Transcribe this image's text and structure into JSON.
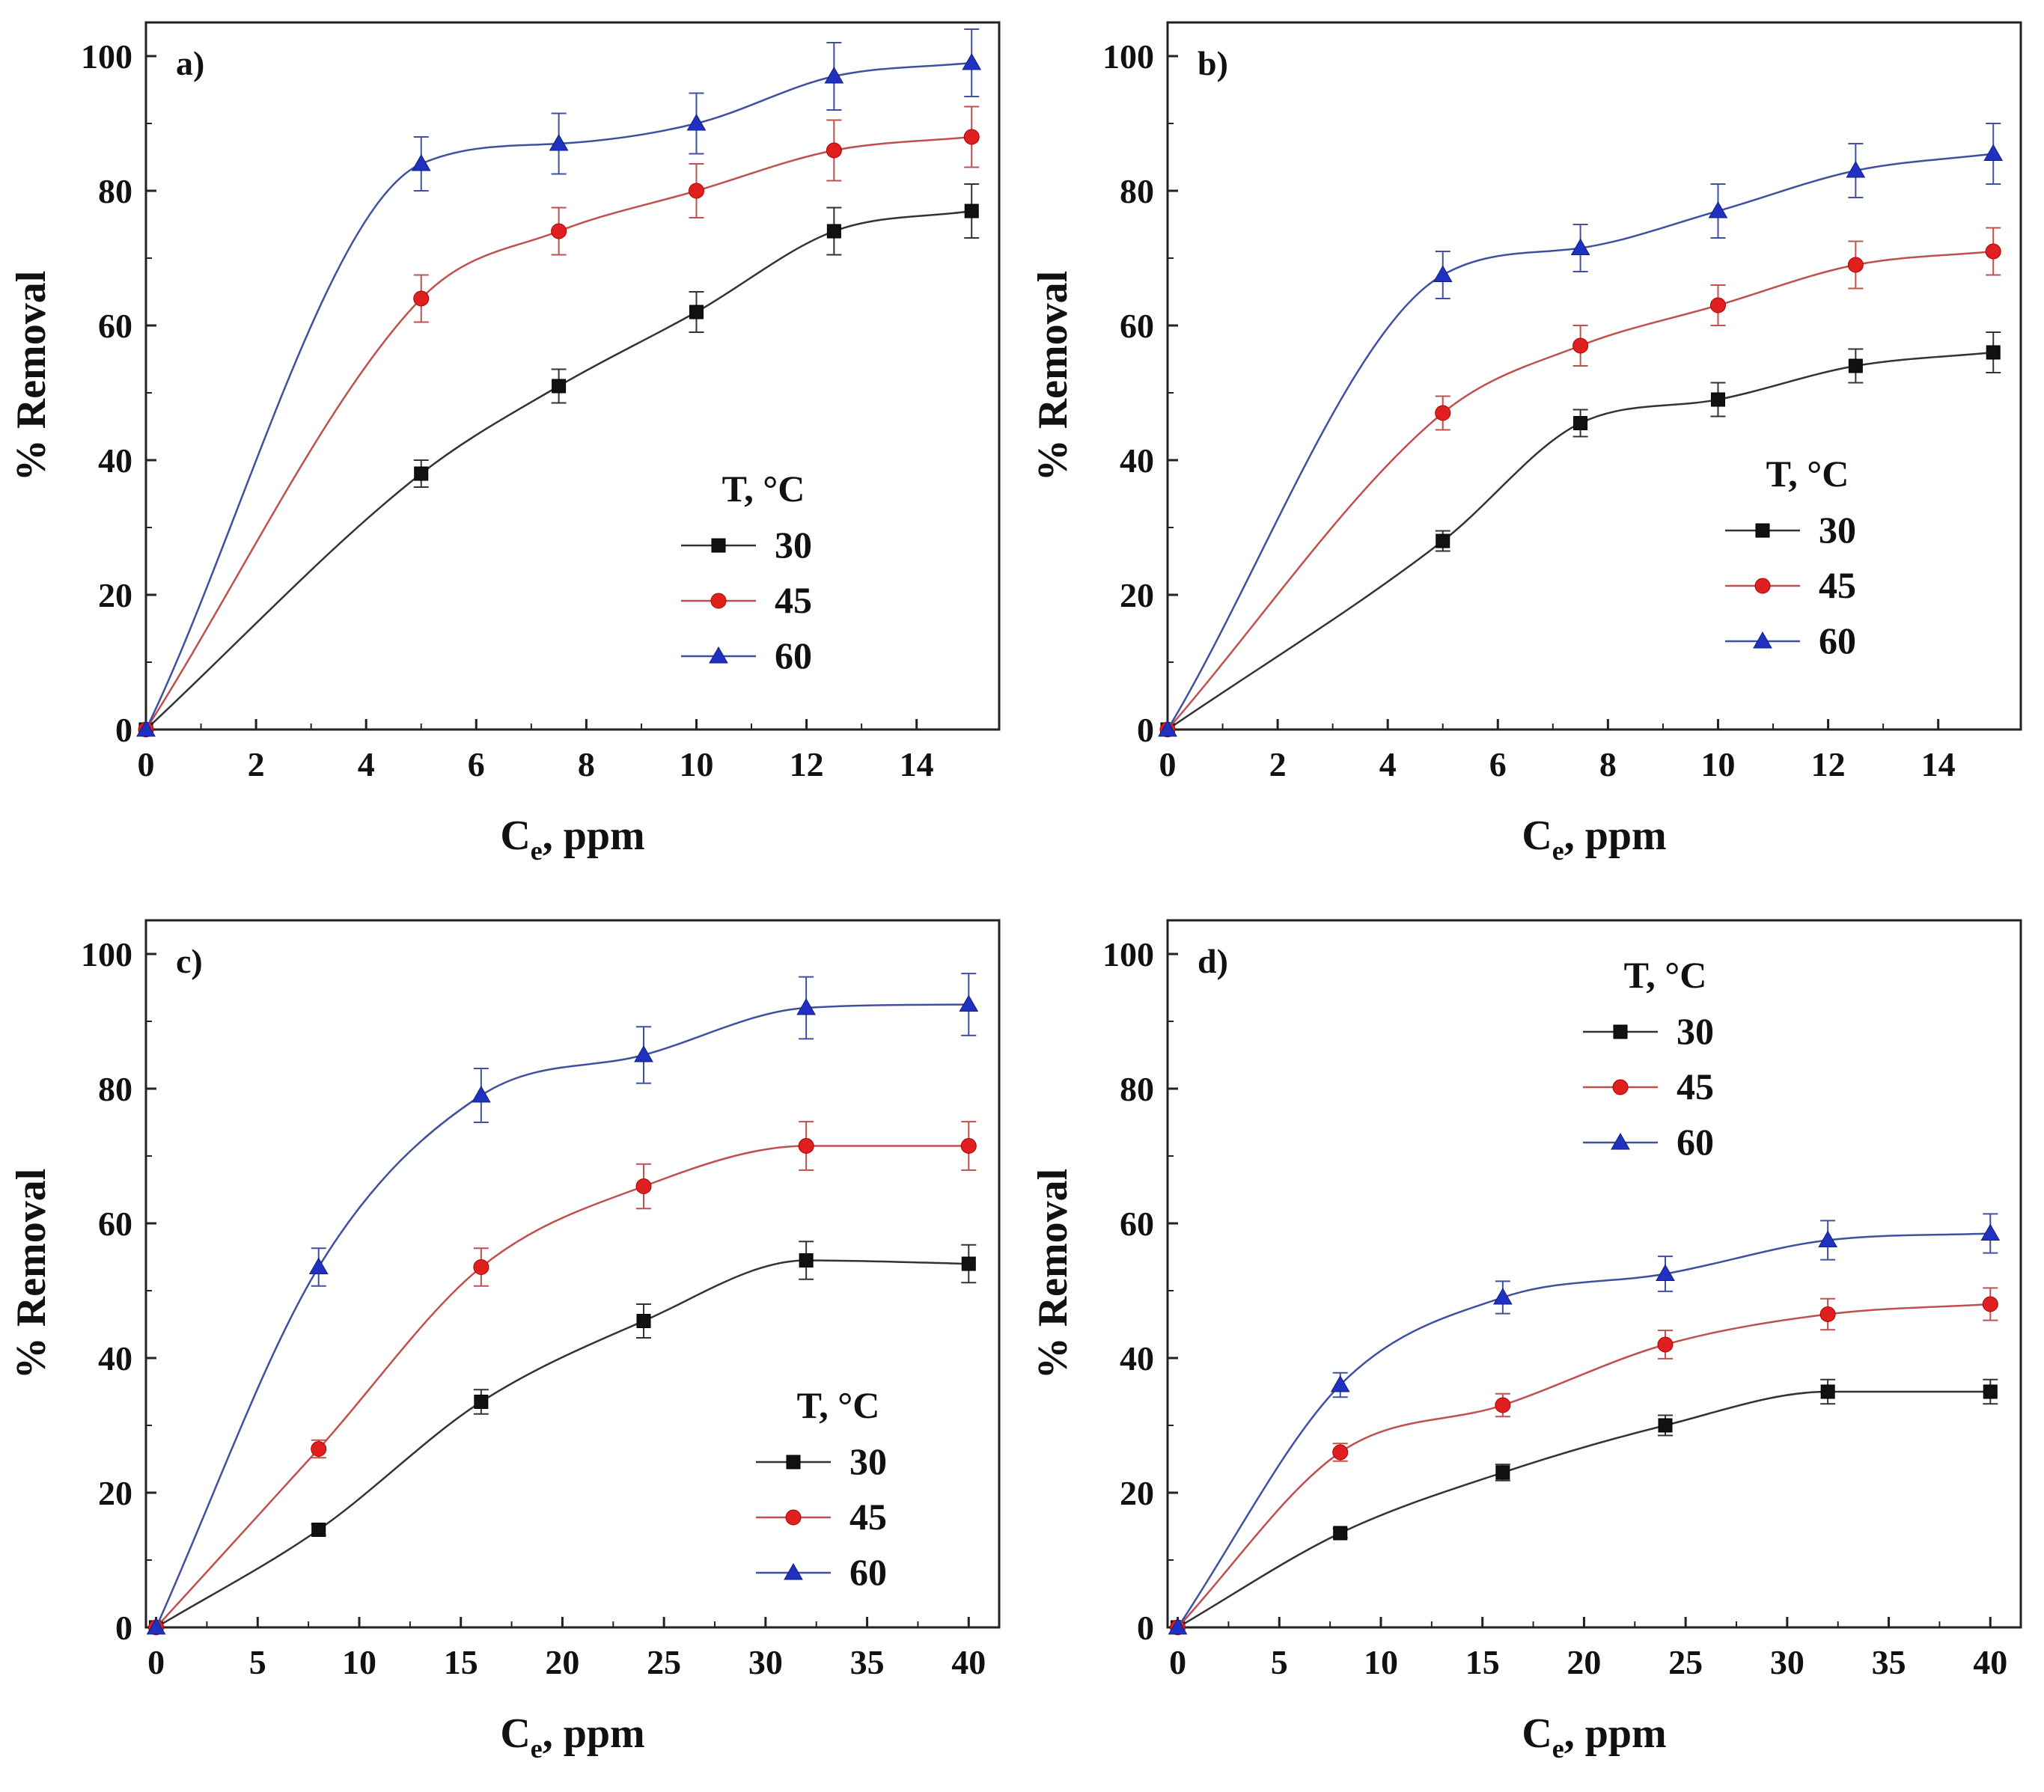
{
  "chart_data": [
    {
      "type": "line",
      "panel_label": "a)",
      "xlabel": "C",
      "xlabel_sub": "e",
      "xlabel_suffix": ", ppm",
      "ylabel": "% Removal",
      "xlim": [
        0,
        15.5
      ],
      "ylim": [
        0,
        105
      ],
      "xticks": [
        0,
        2,
        4,
        6,
        8,
        10,
        12,
        14
      ],
      "yticks": [
        0,
        20,
        40,
        60,
        80,
        100
      ],
      "legend_title": "T, °C",
      "legend_position": "center-right",
      "series": [
        {
          "name": "30",
          "marker": "square",
          "color": "#111111",
          "line_color": "#333333",
          "x": [
            0,
            5,
            7.5,
            10,
            12.5,
            15
          ],
          "y": [
            0,
            38,
            51,
            62,
            74,
            77
          ],
          "err": [
            0,
            2,
            2.5,
            3,
            3.5,
            4
          ]
        },
        {
          "name": "45",
          "marker": "circle",
          "color": "#e02020",
          "line_color": "#c0504d",
          "x": [
            0,
            5,
            7.5,
            10,
            12.5,
            15
          ],
          "y": [
            0,
            64,
            74,
            80,
            86,
            88
          ],
          "err": [
            0,
            3.5,
            3.5,
            4,
            4.5,
            4.5
          ]
        },
        {
          "name": "60",
          "marker": "triangle",
          "color": "#2030c0",
          "line_color": "#4050a0",
          "x": [
            0,
            5,
            7.5,
            10,
            12.5,
            15
          ],
          "y": [
            0,
            84,
            87,
            90,
            97,
            99
          ],
          "err": [
            0,
            4,
            4.5,
            4.5,
            5,
            5
          ]
        }
      ]
    },
    {
      "type": "line",
      "panel_label": "b)",
      "xlabel": "C",
      "xlabel_sub": "e",
      "xlabel_suffix": ", ppm",
      "ylabel": "% Removal",
      "xlim": [
        0,
        15.5
      ],
      "ylim": [
        0,
        105
      ],
      "xticks": [
        0,
        2,
        4,
        6,
        8,
        10,
        12,
        14
      ],
      "yticks": [
        0,
        20,
        40,
        60,
        80,
        100
      ],
      "legend_title": "T, °C",
      "legend_position": "center-right",
      "series": [
        {
          "name": "30",
          "marker": "square",
          "color": "#111111",
          "line_color": "#333333",
          "x": [
            0,
            5,
            7.5,
            10,
            12.5,
            15
          ],
          "y": [
            0,
            28,
            45.5,
            49,
            54,
            56
          ],
          "err": [
            0,
            1.5,
            2,
            2.5,
            2.5,
            3
          ]
        },
        {
          "name": "45",
          "marker": "circle",
          "color": "#e02020",
          "line_color": "#c0504d",
          "x": [
            0,
            5,
            7.5,
            10,
            12.5,
            15
          ],
          "y": [
            0,
            47,
            57,
            63,
            69,
            71
          ],
          "err": [
            0,
            2.5,
            3,
            3,
            3.5,
            3.5
          ]
        },
        {
          "name": "60",
          "marker": "triangle",
          "color": "#2030c0",
          "line_color": "#4050a0",
          "x": [
            0,
            5,
            7.5,
            10,
            12.5,
            15
          ],
          "y": [
            0,
            67.5,
            71.5,
            77,
            83,
            85.5
          ],
          "err": [
            0,
            3.5,
            3.5,
            4,
            4,
            4.5
          ]
        }
      ]
    },
    {
      "type": "line",
      "panel_label": "c)",
      "xlabel": "C",
      "xlabel_sub": "e",
      "xlabel_suffix": ", ppm",
      "ylabel": "% Removal",
      "xlim": [
        -0.5,
        41.5
      ],
      "ylim": [
        0,
        105
      ],
      "xticks": [
        0,
        5,
        10,
        15,
        20,
        25,
        30,
        35,
        40
      ],
      "yticks": [
        0,
        20,
        40,
        60,
        80,
        100
      ],
      "legend_title": "T, °C",
      "legend_position": "lower-right",
      "series": [
        {
          "name": "30",
          "marker": "square",
          "color": "#111111",
          "line_color": "#333333",
          "x": [
            0,
            8,
            16,
            24,
            32,
            40
          ],
          "y": [
            0,
            14.5,
            33.5,
            45.5,
            54.5,
            54
          ],
          "err": [
            0,
            0.8,
            1.8,
            2.5,
            2.8,
            2.8
          ]
        },
        {
          "name": "45",
          "marker": "circle",
          "color": "#e02020",
          "line_color": "#c0504d",
          "x": [
            0,
            8,
            16,
            24,
            32,
            40
          ],
          "y": [
            0,
            26.5,
            53.5,
            65.5,
            71.5,
            71.5
          ],
          "err": [
            0,
            1.3,
            2.8,
            3.3,
            3.6,
            3.6
          ]
        },
        {
          "name": "60",
          "marker": "triangle",
          "color": "#2030c0",
          "line_color": "#4050a0",
          "x": [
            0,
            8,
            16,
            24,
            32,
            40
          ],
          "y": [
            0,
            53.5,
            79,
            85,
            92,
            92.5
          ],
          "err": [
            0,
            2.8,
            4,
            4.2,
            4.6,
            4.6
          ]
        }
      ]
    },
    {
      "type": "line",
      "panel_label": "d)",
      "xlabel": "C",
      "xlabel_sub": "e",
      "xlabel_suffix": ", ppm",
      "ylabel": "% Removal",
      "xlim": [
        -0.5,
        41.5
      ],
      "ylim": [
        0,
        105
      ],
      "xticks": [
        0,
        5,
        10,
        15,
        20,
        25,
        30,
        35,
        40
      ],
      "yticks": [
        0,
        20,
        40,
        60,
        80,
        100
      ],
      "legend_title": "T, °C",
      "legend_position": "upper-left",
      "series": [
        {
          "name": "30",
          "marker": "square",
          "color": "#111111",
          "line_color": "#333333",
          "x": [
            0,
            8,
            16,
            24,
            32,
            40
          ],
          "y": [
            0,
            14,
            23,
            30,
            35,
            35
          ],
          "err": [
            0,
            0.7,
            1.2,
            1.5,
            1.8,
            1.8
          ]
        },
        {
          "name": "45",
          "marker": "circle",
          "color": "#e02020",
          "line_color": "#c0504d",
          "x": [
            0,
            8,
            16,
            24,
            32,
            40
          ],
          "y": [
            0,
            26,
            33,
            42,
            46.5,
            48
          ],
          "err": [
            0,
            1.3,
            1.7,
            2.1,
            2.3,
            2.4
          ]
        },
        {
          "name": "60",
          "marker": "triangle",
          "color": "#2030c0",
          "line_color": "#4050a0",
          "x": [
            0,
            8,
            16,
            24,
            32,
            40
          ],
          "y": [
            0,
            36,
            49,
            52.5,
            57.5,
            58.5
          ],
          "err": [
            0,
            1.8,
            2.4,
            2.6,
            2.9,
            2.9
          ]
        }
      ]
    }
  ]
}
